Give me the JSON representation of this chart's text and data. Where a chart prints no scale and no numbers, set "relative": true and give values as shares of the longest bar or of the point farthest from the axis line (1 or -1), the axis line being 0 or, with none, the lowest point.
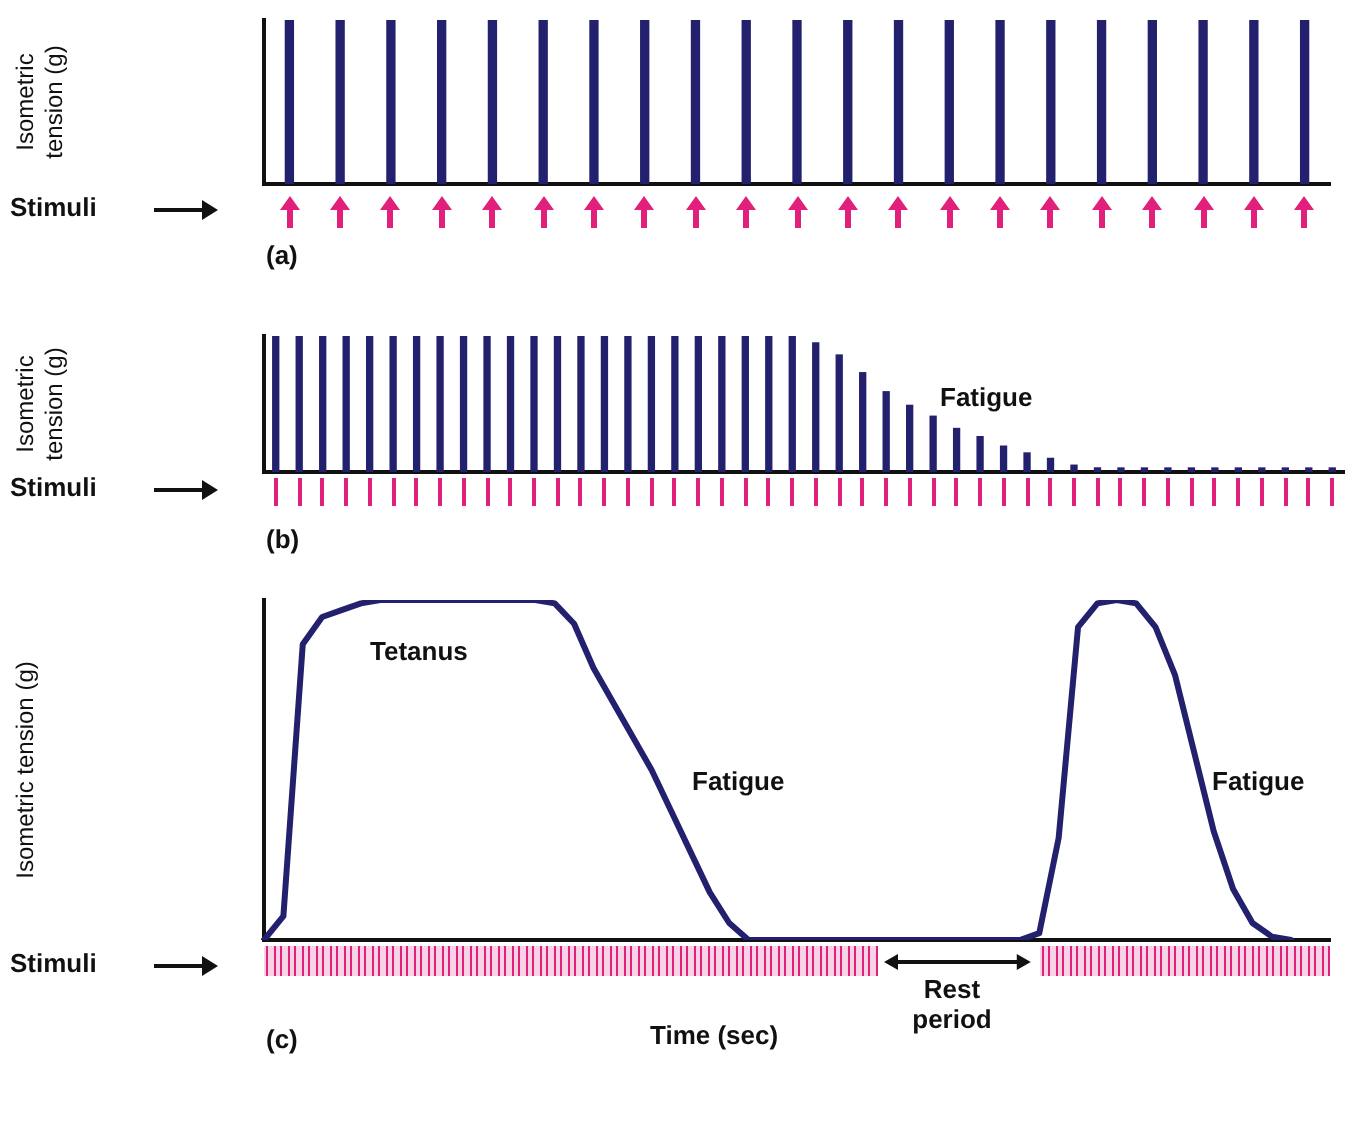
{
  "chart_data": [
    {
      "type": "bar",
      "relative": true,
      "ylabel": "Isometric tension (g)",
      "color": "#23206e",
      "categories": [
        null,
        null,
        null,
        null,
        null,
        null,
        null,
        null,
        null,
        null,
        null,
        null,
        null,
        null,
        null,
        null,
        null,
        null,
        null,
        null,
        null
      ],
      "values": [
        1,
        1,
        1,
        1,
        1,
        1,
        1,
        1,
        1,
        1,
        1,
        1,
        1,
        1,
        1,
        1,
        1,
        1,
        1,
        1,
        1
      ],
      "annotations": [
        "Stimuli",
        "(a)"
      ]
    },
    {
      "type": "bar",
      "relative": true,
      "ylabel": "Isometric tension (g)",
      "color": "#23206e",
      "categories": [
        null,
        null,
        null,
        null,
        null,
        null,
        null,
        null,
        null,
        null,
        null,
        null,
        null,
        null,
        null,
        null,
        null,
        null,
        null,
        null,
        null,
        null,
        null,
        null,
        null,
        null,
        null,
        null,
        null,
        null,
        null,
        null,
        null,
        null,
        null,
        null,
        null,
        null,
        null,
        null,
        null,
        null,
        null,
        null,
        null,
        null
      ],
      "values": [
        1,
        1,
        1,
        1,
        1,
        1,
        1,
        1,
        1,
        1,
        1,
        1,
        1,
        1,
        1,
        1,
        1,
        1,
        1,
        1,
        1,
        1,
        1,
        0.95,
        0.86,
        0.73,
        0.59,
        0.49,
        0.41,
        0.32,
        0.26,
        0.19,
        0.14,
        0.1,
        0.05,
        0.03,
        0,
        0,
        0,
        0,
        0,
        0,
        0,
        0,
        0,
        0
      ],
      "annotations": [
        "Fatigue",
        "Stimuli",
        "(b)"
      ]
    },
    {
      "type": "line",
      "relative": true,
      "ylabel": "Isometric tension (g)",
      "xlabel": "Time (sec)",
      "color": "#23206e",
      "marker": "none",
      "categories": [
        null,
        null,
        null,
        null,
        null,
        null,
        null,
        null,
        null,
        null,
        null,
        null,
        null,
        null,
        null,
        null,
        null,
        null,
        null,
        null,
        null,
        null,
        null,
        null,
        null,
        null,
        null,
        null,
        null,
        null,
        null,
        null,
        null,
        null,
        null,
        null,
        null,
        null,
        null,
        null,
        null,
        null,
        null,
        null,
        null,
        null,
        null,
        null,
        null,
        null,
        null,
        null,
        null,
        null,
        null,
        null
      ],
      "values": [
        0,
        0.07,
        0.87,
        0.95,
        0.97,
        0.99,
        1,
        1,
        1,
        1,
        1,
        1,
        1,
        1,
        1,
        0.99,
        0.93,
        0.8,
        0.7,
        0.6,
        0.5,
        0.38,
        0.26,
        0.14,
        0.05,
        0,
        0,
        0,
        0,
        0,
        0,
        0,
        0,
        0,
        0,
        0,
        0,
        0,
        0,
        0,
        0.02,
        0.3,
        0.92,
        0.99,
        1,
        0.99,
        0.92,
        0.78,
        0.55,
        0.32,
        0.15,
        0.05,
        0.01,
        0,
        null,
        null
      ],
      "annotations": [
        "Tetanus",
        "Fatigue",
        "Fatigue",
        "Stimuli",
        "Rest period",
        "(c)"
      ]
    }
  ]
}
